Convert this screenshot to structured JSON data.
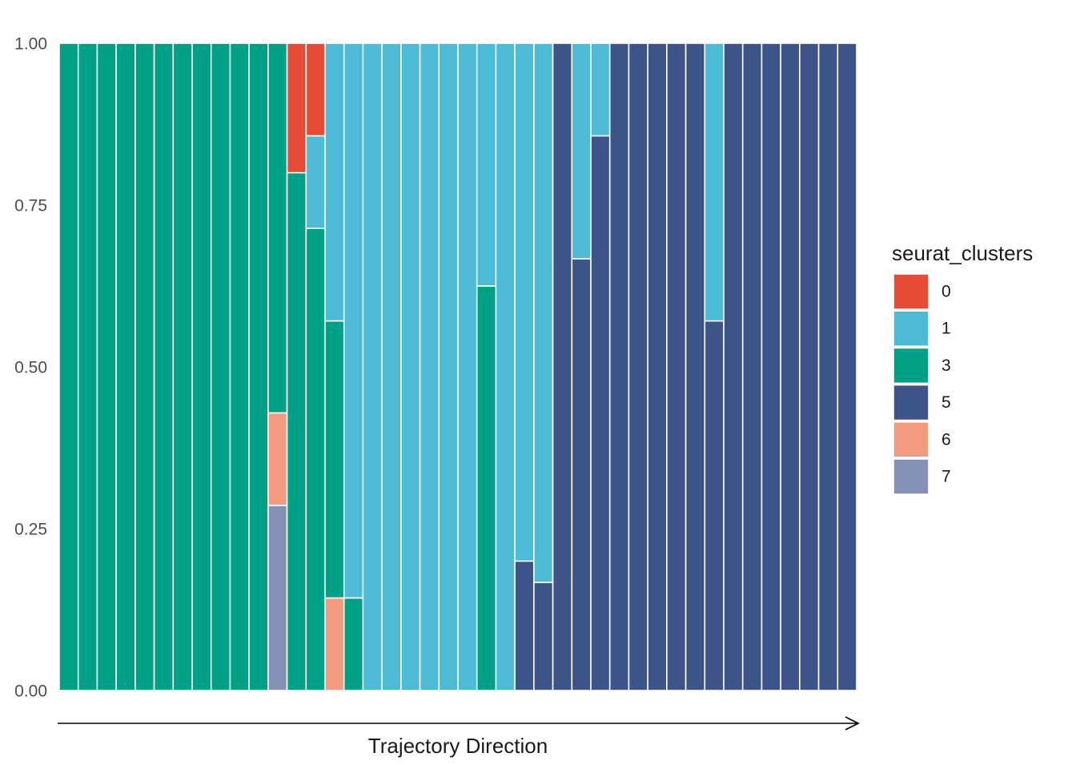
{
  "chart_data": {
    "type": "bar",
    "stacked": "proportion",
    "title": "",
    "xlabel": "Trajectory Direction",
    "ylabel": "",
    "ylim": [
      0,
      1
    ],
    "y_ticks": [
      "0.00",
      "0.25",
      "0.50",
      "0.75",
      "1.00"
    ],
    "y_tick_values": [
      0,
      0.25,
      0.5,
      0.75,
      1.0
    ],
    "legend_title": "seurat_clusters",
    "legend_position": "right",
    "stack_order_bottom_to_top": [
      "7",
      "6",
      "5",
      "3",
      "1",
      "0"
    ],
    "clusters": [
      {
        "name": "0",
        "color": "#E64B35"
      },
      {
        "name": "1",
        "color": "#4DBBD5"
      },
      {
        "name": "3",
        "color": "#00A087"
      },
      {
        "name": "5",
        "color": "#3C5488"
      },
      {
        "name": "6",
        "color": "#F39B7F"
      },
      {
        "name": "7",
        "color": "#8491B4"
      }
    ],
    "bars": [
      {
        "3": 1.0
      },
      {
        "3": 1.0
      },
      {
        "3": 1.0
      },
      {
        "3": 1.0
      },
      {
        "3": 1.0
      },
      {
        "3": 1.0
      },
      {
        "3": 1.0
      },
      {
        "3": 1.0
      },
      {
        "3": 1.0
      },
      {
        "3": 1.0
      },
      {
        "3": 1.0
      },
      {
        "7": 0.286,
        "6": 0.143,
        "3": 0.571
      },
      {
        "3": 0.8,
        "0": 0.2
      },
      {
        "3": 0.714,
        "1": 0.143,
        "0": 0.143
      },
      {
        "6": 0.143,
        "3": 0.428,
        "1": 0.429
      },
      {
        "3": 0.143,
        "1": 0.857
      },
      {
        "1": 1.0
      },
      {
        "1": 1.0
      },
      {
        "1": 1.0
      },
      {
        "1": 1.0
      },
      {
        "1": 1.0
      },
      {
        "1": 1.0
      },
      {
        "3": 0.625,
        "1": 0.375
      },
      {
        "1": 1.0
      },
      {
        "5": 0.2,
        "1": 0.8
      },
      {
        "5": 0.167,
        "1": 0.833
      },
      {
        "5": 1.0
      },
      {
        "5": 0.667,
        "1": 0.333
      },
      {
        "5": 0.857,
        "1": 0.143
      },
      {
        "5": 1.0
      },
      {
        "5": 1.0
      },
      {
        "5": 1.0
      },
      {
        "5": 1.0
      },
      {
        "5": 1.0
      },
      {
        "5": 0.571,
        "1": 0.429
      },
      {
        "5": 1.0
      },
      {
        "5": 1.0
      },
      {
        "5": 1.0
      },
      {
        "5": 1.0
      },
      {
        "5": 1.0
      },
      {
        "5": 1.0
      },
      {
        "5": 1.0
      }
    ]
  }
}
